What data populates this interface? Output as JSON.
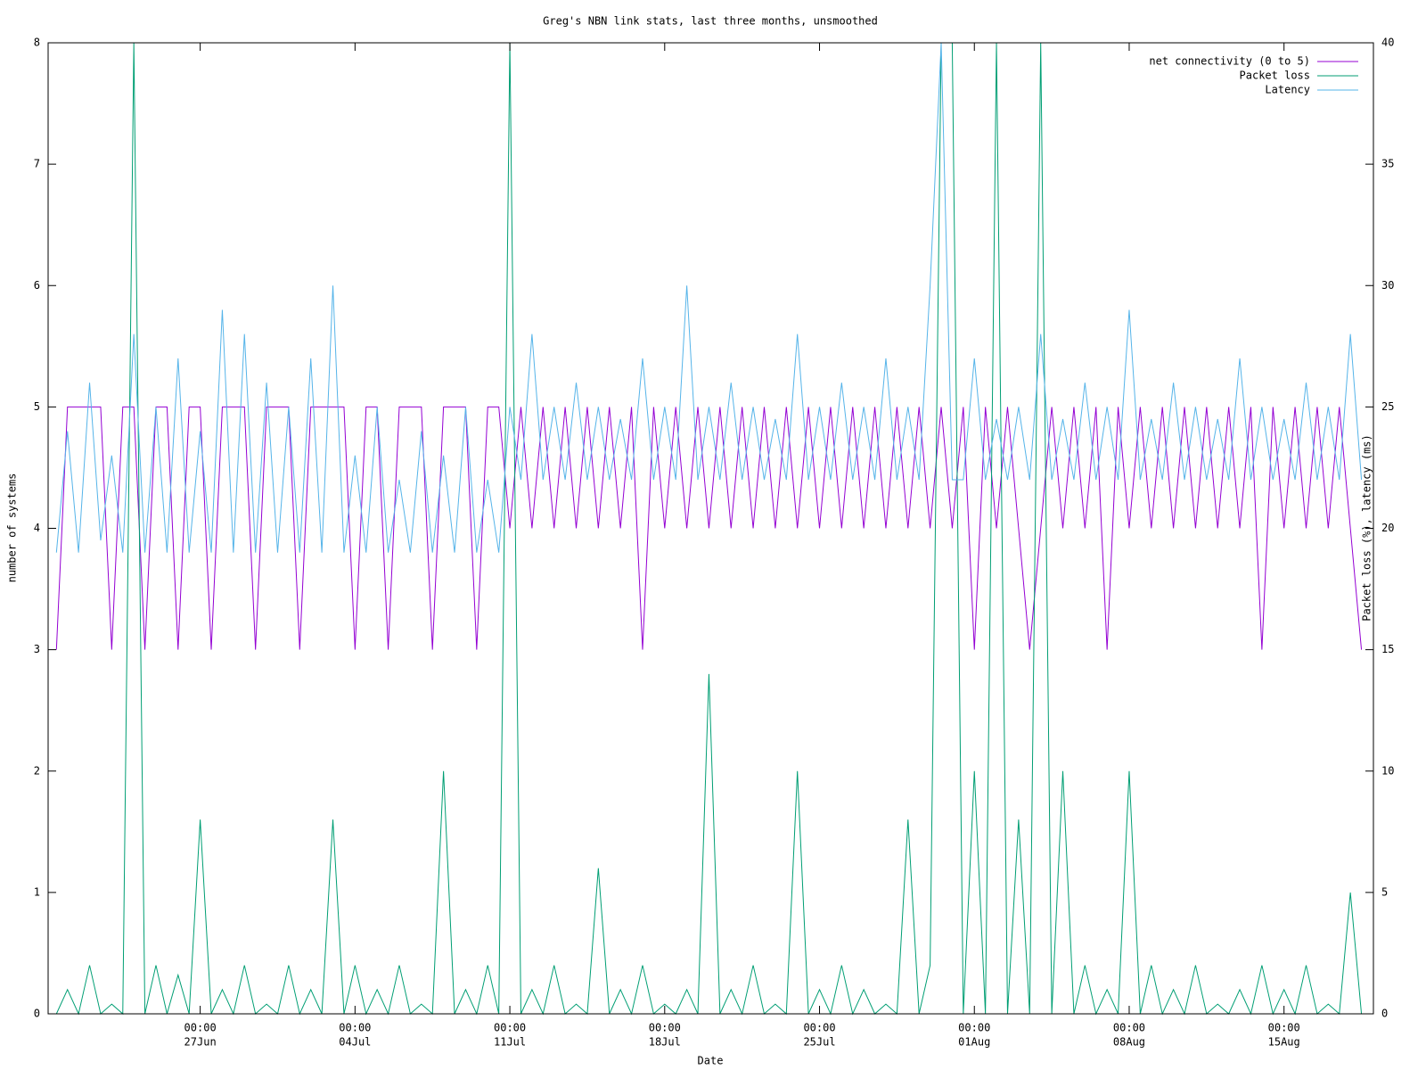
{
  "chart_data": {
    "type": "line",
    "title": "Greg's NBN link stats, last three months, unsmoothed",
    "x_label": "Date",
    "y_label": "number of systems",
    "y2_label": "Packet loss (%), latency (ms)",
    "legend": "top-right",
    "grid": false,
    "xlim": [
      "20Jun 03:00",
      "19Aug 01:00"
    ],
    "xticks": [
      {
        "value": "27Jun 00:00",
        "label": [
          "00:00",
          "27Jun"
        ]
      },
      {
        "value": "04Jul 00:00",
        "label": [
          "00:00",
          "04Jul"
        ]
      },
      {
        "value": "11Jul 00:00",
        "label": [
          "00:00",
          "11Jul"
        ]
      },
      {
        "value": "18Jul 00:00",
        "label": [
          "00:00",
          "18Jul"
        ]
      },
      {
        "value": "25Jul 00:00",
        "label": [
          "00:00",
          "25Jul"
        ]
      },
      {
        "value": "01Aug 00:00",
        "label": [
          "00:00",
          "01Aug"
        ]
      },
      {
        "value": "08Aug 00:00",
        "label": [
          "00:00",
          "08Aug"
        ]
      },
      {
        "value": "15Aug 00:00",
        "label": [
          "00:00",
          "15Aug"
        ]
      }
    ],
    "ylim": [
      0,
      8
    ],
    "yticks": [
      0,
      1,
      2,
      3,
      4,
      5,
      6,
      7,
      8
    ],
    "y2lim": [
      0,
      40
    ],
    "y2ticks": [
      0,
      5,
      10,
      15,
      20,
      25,
      30,
      35,
      40
    ],
    "x": [
      "20Jun 12:00",
      "21Jun 00:00",
      "21Jun 12:00",
      "22Jun 00:00",
      "22Jun 12:00",
      "23Jun 00:00",
      "23Jun 12:00",
      "24Jun 00:00",
      "24Jun 12:00",
      "25Jun 00:00",
      "25Jun 12:00",
      "26Jun 00:00",
      "26Jun 12:00",
      "27Jun 00:00",
      "27Jun 12:00",
      "28Jun 00:00",
      "28Jun 12:00",
      "29Jun 00:00",
      "29Jun 12:00",
      "30Jun 00:00",
      "30Jun 12:00",
      "01Jul 00:00",
      "01Jul 12:00",
      "02Jul 00:00",
      "02Jul 12:00",
      "03Jul 00:00",
      "03Jul 12:00",
      "04Jul 00:00",
      "04Jul 12:00",
      "05Jul 00:00",
      "05Jul 12:00",
      "06Jul 00:00",
      "06Jul 12:00",
      "07Jul 00:00",
      "07Jul 12:00",
      "08Jul 00:00",
      "08Jul 12:00",
      "09Jul 00:00",
      "09Jul 12:00",
      "10Jul 00:00",
      "10Jul 12:00",
      "11Jul 00:00",
      "11Jul 12:00",
      "12Jul 00:00",
      "12Jul 12:00",
      "13Jul 00:00",
      "13Jul 12:00",
      "14Jul 00:00",
      "14Jul 12:00",
      "15Jul 00:00",
      "15Jul 12:00",
      "16Jul 00:00",
      "16Jul 12:00",
      "17Jul 00:00",
      "17Jul 12:00",
      "18Jul 00:00",
      "18Jul 12:00",
      "19Jul 00:00",
      "19Jul 12:00",
      "20Jul 00:00",
      "20Jul 12:00",
      "21Jul 00:00",
      "21Jul 12:00",
      "22Jul 00:00",
      "22Jul 12:00",
      "23Jul 00:00",
      "23Jul 12:00",
      "24Jul 00:00",
      "24Jul 12:00",
      "25Jul 00:00",
      "25Jul 12:00",
      "26Jul 00:00",
      "26Jul 12:00",
      "27Jul 00:00",
      "27Jul 12:00",
      "28Jul 00:00",
      "28Jul 12:00",
      "29Jul 00:00",
      "29Jul 12:00",
      "30Jul 00:00",
      "30Jul 12:00",
      "31Jul 00:00",
      "31Jul 12:00",
      "01Aug 00:00",
      "01Aug 12:00",
      "02Aug 00:00",
      "02Aug 12:00",
      "03Aug 00:00",
      "03Aug 12:00",
      "04Aug 00:00",
      "04Aug 12:00",
      "05Aug 00:00",
      "05Aug 12:00",
      "06Aug 00:00",
      "06Aug 12:00",
      "07Aug 00:00",
      "07Aug 12:00",
      "08Aug 00:00",
      "08Aug 12:00",
      "09Aug 00:00",
      "09Aug 12:00",
      "10Aug 00:00",
      "10Aug 12:00",
      "11Aug 00:00",
      "11Aug 12:00",
      "12Aug 00:00",
      "12Aug 12:00",
      "13Aug 00:00",
      "13Aug 12:00",
      "14Aug 00:00",
      "14Aug 12:00",
      "15Aug 00:00",
      "15Aug 12:00",
      "16Aug 00:00",
      "16Aug 12:00",
      "17Aug 00:00",
      "17Aug 12:00",
      "18Aug 00:00",
      "18Aug 12:00"
    ],
    "series": [
      {
        "name": "net connectivity (0 to 5)",
        "color": "#9400d3",
        "axis": "y",
        "values": [
          3,
          5,
          5,
          5,
          5,
          3,
          5,
          5,
          3,
          5,
          5,
          3,
          5,
          5,
          3,
          5,
          5,
          5,
          3,
          5,
          5,
          5,
          3,
          5,
          5,
          5,
          5,
          3,
          5,
          5,
          3,
          5,
          5,
          5,
          3,
          5,
          5,
          5,
          3,
          5,
          5,
          4,
          5,
          4,
          5,
          4,
          5,
          4,
          5,
          4,
          5,
          4,
          5,
          3,
          5,
          4,
          5,
          4,
          5,
          4,
          5,
          4,
          5,
          4,
          5,
          4,
          5,
          4,
          5,
          4,
          5,
          4,
          5,
          4,
          5,
          4,
          5,
          4,
          5,
          4,
          5,
          4,
          5,
          3,
          5,
          4,
          5,
          4,
          3,
          4,
          5,
          4,
          5,
          4,
          5,
          3,
          5,
          4,
          5,
          4,
          5,
          4,
          5,
          4,
          5,
          4,
          5,
          4,
          5,
          3,
          5,
          4,
          5,
          4,
          5,
          4,
          5,
          4,
          3
        ]
      },
      {
        "name": "Packet loss",
        "color": "#009e73",
        "axis": "y2",
        "values": [
          0,
          1,
          0,
          2,
          0,
          0.4,
          0,
          40,
          0,
          2,
          0,
          1.6,
          0,
          8,
          0,
          1,
          0,
          2,
          0,
          0.4,
          0,
          2,
          0,
          1,
          0,
          8,
          0,
          2,
          0,
          1,
          0,
          2,
          0,
          0.4,
          0,
          10,
          0,
          1,
          0,
          2,
          0,
          40,
          0,
          1,
          0,
          2,
          0,
          0.4,
          0,
          6,
          0,
          1,
          0,
          2,
          0,
          0.4,
          0,
          1,
          0,
          14,
          0,
          1,
          0,
          2,
          0,
          0.4,
          0,
          10,
          0,
          1,
          0,
          2,
          0,
          1,
          0,
          0.4,
          0,
          8,
          0,
          2,
          40,
          40,
          0,
          10,
          0,
          40,
          0,
          8,
          0,
          40,
          0,
          10,
          0,
          2,
          0,
          1,
          0,
          10,
          0,
          2,
          0,
          1,
          0,
          2,
          0,
          0.4,
          0,
          1,
          0,
          2,
          0,
          1,
          0,
          2,
          0,
          0.4,
          0,
          5,
          0
        ]
      },
      {
        "name": "Latency",
        "color": "#56b4e9",
        "axis": "y2",
        "values": [
          19,
          24,
          19,
          26,
          19.5,
          23,
          19,
          28,
          19,
          25,
          19,
          27,
          19,
          24,
          19,
          29,
          19,
          28,
          19,
          26,
          19,
          25,
          19,
          27,
          19,
          30,
          19,
          23,
          19,
          25,
          19,
          22,
          19,
          24,
          19,
          23,
          19,
          25,
          19,
          22,
          19,
          25,
          22,
          28,
          22,
          25,
          22,
          26,
          22,
          25,
          22,
          24.5,
          22,
          27,
          22,
          25,
          22,
          30,
          22,
          25,
          22,
          26,
          22,
          25,
          22,
          24.5,
          22,
          28,
          22,
          25,
          22,
          26,
          22,
          25,
          22,
          27,
          22,
          25,
          22,
          30,
          40,
          22,
          22,
          27,
          22,
          24.5,
          22,
          25,
          22,
          28,
          22,
          24.5,
          22,
          26,
          22,
          25,
          22,
          29,
          22,
          24.5,
          22,
          26,
          22,
          25,
          22,
          24.5,
          22,
          27,
          22,
          25,
          22,
          24.5,
          22,
          26,
          22,
          25,
          22,
          28,
          22
        ]
      }
    ]
  }
}
